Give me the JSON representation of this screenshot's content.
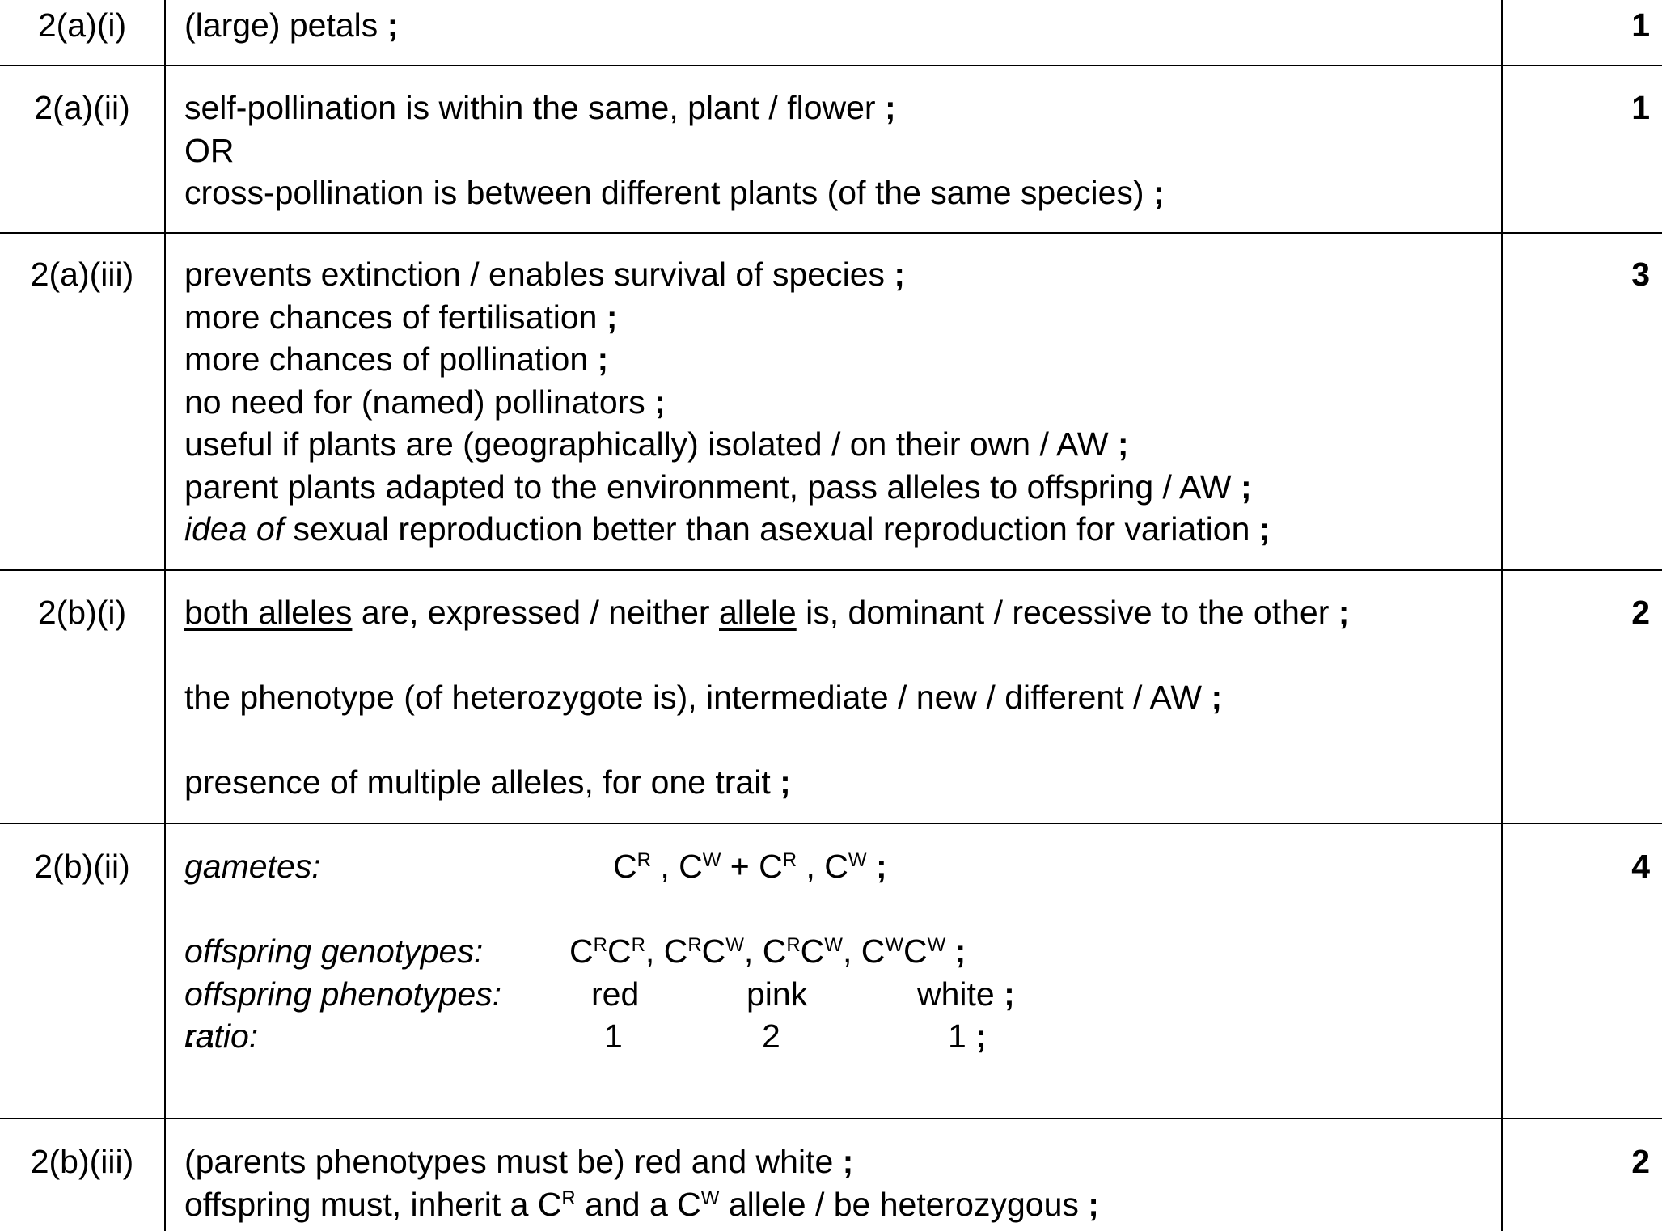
{
  "rows": [
    {
      "question": "2(a)(i)",
      "marks": "1",
      "answer_lines": [
        "(large) petals"
      ]
    },
    {
      "question": "2(a)(ii)",
      "marks": "1",
      "answer_lines": [
        "self-pollination is within the same, plant / flower",
        "OR",
        "cross-pollination is between different plants (of the same species)"
      ]
    },
    {
      "question": "2(a)(iii)",
      "marks": "3",
      "answer_lines": [
        "prevents extinction / enables survival of species",
        "more chances of fertilisation",
        "more chances of pollination",
        "no need for (named) pollinators",
        "useful if plants are (geographically) isolated / on their own / AW",
        "parent plants adapted to the environment, pass alleles to offspring / AW",
        "idea of",
        "sexual reproduction better than asexual reproduction for variation"
      ]
    },
    {
      "question": "2(b)(i)",
      "marks": "2",
      "answer_lines": [
        "both alleles",
        "are, expressed / neither",
        "allele",
        "is, dominant / recessive to the other",
        "the phenotype (of heterozygote is), intermediate / new / different / AW",
        "presence of multiple alleles, for one trait"
      ]
    },
    {
      "question": "2(b)(ii)",
      "marks": "4",
      "labels": {
        "gametes": "gametes:",
        "genotypes": "offspring genotypes:",
        "phenotypes": "offspring phenotypes:",
        "ratio": "ratio:"
      },
      "phenotypes": [
        "red",
        "pink",
        "white"
      ],
      "ratio": [
        "1",
        ":",
        "2",
        ":",
        "1"
      ],
      "allele_letter": "C",
      "sup_r": "R",
      "sup_w": "W"
    },
    {
      "question": "2(b)(iii)",
      "marks": "2",
      "answer_lines": [
        "(parents phenotypes must be) red and white",
        "offspring must, inherit a C",
        "and a C",
        "allele / be heterozygous"
      ]
    }
  ],
  "semicolon": ";"
}
